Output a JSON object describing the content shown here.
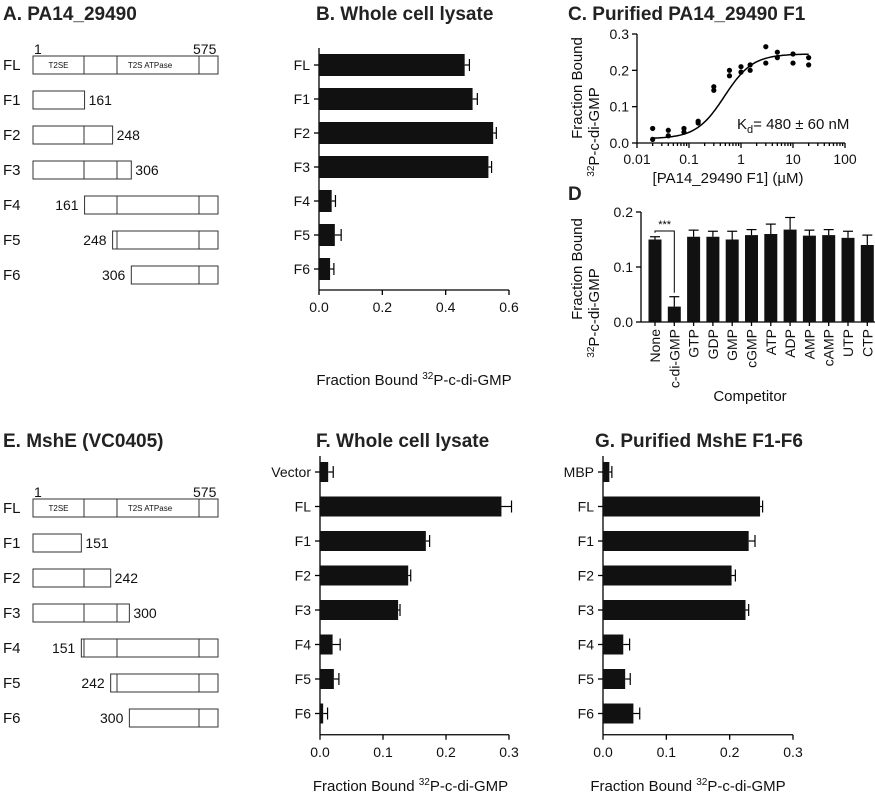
{
  "panel_a": {
    "title": "A. PA14_29490",
    "start_label": "1",
    "end_label": "575",
    "domain_t2se": "T2SE",
    "domain_atpase": "T2S ATPase",
    "fragments": [
      {
        "name": "FL",
        "start": 1,
        "end": 575
      },
      {
        "name": "F1",
        "start": 1,
        "end": 161,
        "label": "161"
      },
      {
        "name": "F2",
        "start": 1,
        "end": 248,
        "label": "248"
      },
      {
        "name": "F3",
        "start": 1,
        "end": 306,
        "label": "306"
      },
      {
        "name": "F4",
        "start": 161,
        "end": 575,
        "label": "161"
      },
      {
        "name": "F5",
        "start": 248,
        "end": 575,
        "label": "248"
      },
      {
        "name": "F6",
        "start": 306,
        "end": 575,
        "label": "306"
      }
    ]
  },
  "panel_e": {
    "title": "E. MshE (VC0405)",
    "start_label": "1",
    "end_label": "575",
    "domain_t2se": "T2SE",
    "domain_atpase": "T2S ATPase",
    "fragments": [
      {
        "name": "FL",
        "start": 1,
        "end": 575
      },
      {
        "name": "F1",
        "start": 1,
        "end": 151,
        "label": "151"
      },
      {
        "name": "F2",
        "start": 1,
        "end": 242,
        "label": "242"
      },
      {
        "name": "F3",
        "start": 1,
        "end": 300,
        "label": "300"
      },
      {
        "name": "F4",
        "start": 151,
        "end": 575,
        "label": "151"
      },
      {
        "name": "F5",
        "start": 242,
        "end": 575,
        "label": "242"
      },
      {
        "name": "F6",
        "start": 300,
        "end": 575,
        "label": "300"
      }
    ]
  },
  "xlabel_prefix": "Fraction Bound ",
  "xlabel_sup": "32",
  "xlabel_suffix": "P-c-di-GMP",
  "ylabel_line1": "Fraction Bound",
  "ylabel_line2_suffix": "P-c-di-GMP",
  "chart_data": [
    {
      "id": "B",
      "type": "bar",
      "orientation": "horizontal",
      "title": "B. Whole cell lysate",
      "categories": [
        "FL",
        "F1",
        "F2",
        "F3",
        "F4",
        "F5",
        "F6"
      ],
      "values": [
        0.46,
        0.485,
        0.55,
        0.535,
        0.04,
        0.05,
        0.035
      ],
      "errors": [
        0.015,
        0.015,
        0.01,
        0.01,
        0.012,
        0.02,
        0.012
      ],
      "xlabel": "Fraction Bound 32P-c-di-GMP",
      "xlim": [
        0,
        0.6
      ],
      "xticks": [
        "0.0",
        "0.2",
        "0.4",
        "0.6"
      ],
      "grid": false
    },
    {
      "id": "C",
      "type": "scatter",
      "title": "C. Purified PA14_29490 F1",
      "xlabel": "[PA14_29490 F1] (µM)",
      "ylabel": "Fraction Bound 32P-c-di-GMP",
      "xscale": "log",
      "xlim": [
        0.01,
        100
      ],
      "ylim": [
        0,
        0.3
      ],
      "xticks": [
        "0.01",
        "0.1",
        "1",
        "10",
        "100"
      ],
      "yticks": [
        "0.0",
        "0.1",
        "0.2",
        "0.3"
      ],
      "points": [
        [
          0.02,
          0.04
        ],
        [
          0.02,
          0.01
        ],
        [
          0.04,
          0.02
        ],
        [
          0.04,
          0.035
        ],
        [
          0.08,
          0.04
        ],
        [
          0.08,
          0.03
        ],
        [
          0.15,
          0.06
        ],
        [
          0.15,
          0.055
        ],
        [
          0.3,
          0.145
        ],
        [
          0.3,
          0.155
        ],
        [
          0.6,
          0.185
        ],
        [
          0.6,
          0.2
        ],
        [
          1.0,
          0.21
        ],
        [
          1.0,
          0.195
        ],
        [
          1.5,
          0.2
        ],
        [
          1.5,
          0.215
        ],
        [
          3.0,
          0.265
        ],
        [
          3.0,
          0.22
        ],
        [
          5.0,
          0.25
        ],
        [
          5.0,
          0.235
        ],
        [
          10.0,
          0.22
        ],
        [
          10.0,
          0.245
        ],
        [
          20.0,
          0.215
        ],
        [
          20.0,
          0.235
        ]
      ],
      "fit": {
        "kd_uM": 0.48,
        "bmax": 0.245,
        "hill": 1.6,
        "baseline": 0.012
      },
      "annotation_k": "K",
      "annotation_sub": "d",
      "annotation_rest": "= 480 ± 60 nM",
      "grid": false
    },
    {
      "id": "D",
      "type": "bar",
      "title": "D",
      "categories": [
        "None",
        "c-di-GMP",
        "GTP",
        "GDP",
        "GMP",
        "cGMP",
        "ATP",
        "ADP",
        "AMP",
        "cAMP",
        "UTP",
        "CTP"
      ],
      "values": [
        0.15,
        0.028,
        0.155,
        0.155,
        0.15,
        0.158,
        0.16,
        0.168,
        0.157,
        0.158,
        0.153,
        0.14
      ],
      "errors": [
        0.005,
        0.018,
        0.012,
        0.01,
        0.015,
        0.01,
        0.018,
        0.022,
        0.01,
        0.01,
        0.012,
        0.018
      ],
      "xlabel": "Competitor",
      "ylabel": "Fraction Bound 32P-c-di-GMP",
      "ylim": [
        0,
        0.2
      ],
      "yticks": [
        "0.0",
        "0.1",
        "0.2"
      ],
      "significance": "***",
      "grid": false
    },
    {
      "id": "F",
      "type": "bar",
      "orientation": "horizontal",
      "title": "F. Whole cell lysate",
      "categories": [
        "Vector",
        "FL",
        "F1",
        "F2",
        "F3",
        "F4",
        "F5",
        "F6"
      ],
      "values": [
        0.013,
        0.288,
        0.168,
        0.14,
        0.124,
        0.02,
        0.022,
        0.005
      ],
      "errors": [
        0.008,
        0.016,
        0.006,
        0.004,
        0.003,
        0.012,
        0.008,
        0.007
      ],
      "xlabel": "Fraction Bound 32P-c-di-GMP",
      "xlim": [
        0,
        0.3
      ],
      "xticks": [
        "0.0",
        "0.1",
        "0.2",
        "0.3"
      ],
      "grid": false
    },
    {
      "id": "G",
      "type": "bar",
      "orientation": "horizontal",
      "title": "G. Purified MshE F1-F6",
      "categories": [
        "MBP",
        "FL",
        "F1",
        "F2",
        "F3",
        "F4",
        "F5",
        "F6"
      ],
      "values": [
        0.01,
        0.248,
        0.23,
        0.203,
        0.225,
        0.032,
        0.035,
        0.048
      ],
      "errors": [
        0.004,
        0.004,
        0.01,
        0.006,
        0.005,
        0.01,
        0.008,
        0.01
      ],
      "xlabel": "Fraction Bound 32P-c-di-GMP",
      "xlim": [
        0,
        0.3
      ],
      "xticks": [
        "0.0",
        "0.1",
        "0.2",
        "0.3"
      ],
      "grid": false
    }
  ]
}
